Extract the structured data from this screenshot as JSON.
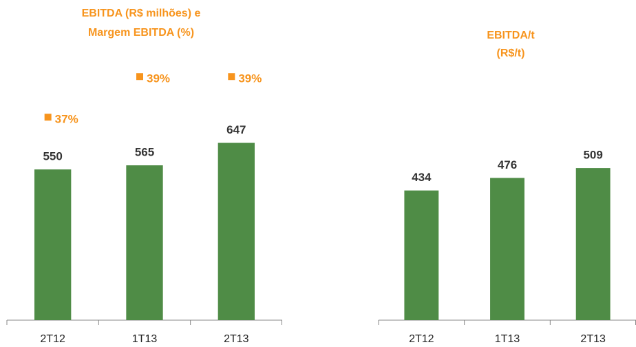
{
  "chart_data": [
    {
      "type": "bar",
      "title": [
        "EBITDA (R$ milhões) e",
        "Margem EBITDA (%)"
      ],
      "categories": [
        "2T12",
        "1T13",
        "2T13"
      ],
      "series": [
        {
          "values": [
            550,
            565,
            647
          ],
          "color": "#4f8c46"
        },
        {
          "values": [
            37,
            39,
            39
          ],
          "value_labels": [
            "37%",
            "39%",
            "39%"
          ],
          "color": "#f7941d",
          "axis": "y2"
        }
      ],
      "ylim": [
        0,
        1000
      ],
      "y2lim": [
        27,
        40.5
      ]
    },
    {
      "type": "bar",
      "title": [
        "EBITDA/t",
        "(R$/t)"
      ],
      "categories": [
        "2T12",
        "1T13",
        "2T13"
      ],
      "series": [
        {
          "values": [
            434,
            476,
            509
          ],
          "color": "#4f8c46"
        }
      ],
      "ylim": [
        0,
        1000
      ]
    }
  ]
}
